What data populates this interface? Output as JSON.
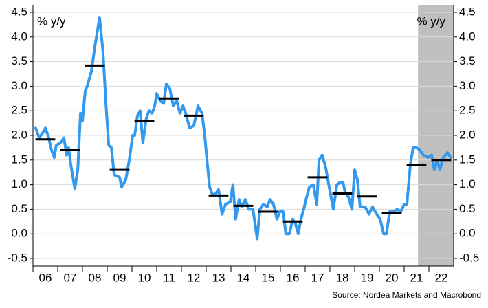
{
  "chart_data": {
    "type": "line",
    "y_label": "% y/y",
    "y2_label": "% y/y",
    "source": "Source: Nordea Markets and Macrobond",
    "xlim": [
      2006,
      2023
    ],
    "xticks": [
      {
        "value": 2006,
        "label": "06"
      },
      {
        "value": 2007,
        "label": "07"
      },
      {
        "value": 2008,
        "label": "08"
      },
      {
        "value": 2009,
        "label": "09"
      },
      {
        "value": 2010,
        "label": "10"
      },
      {
        "value": 2011,
        "label": "11"
      },
      {
        "value": 2012,
        "label": "12"
      },
      {
        "value": 2013,
        "label": "13"
      },
      {
        "value": 2014,
        "label": "14"
      },
      {
        "value": 2015,
        "label": "15"
      },
      {
        "value": 2016,
        "label": "16"
      },
      {
        "value": 2017,
        "label": "17"
      },
      {
        "value": 2018,
        "label": "18"
      },
      {
        "value": 2019,
        "label": "19"
      },
      {
        "value": 2020,
        "label": "20"
      },
      {
        "value": 2021,
        "label": "21"
      },
      {
        "value": 2022,
        "label": "22"
      }
    ],
    "ylim": [
      -0.5,
      4.5
    ],
    "yticks": [
      -0.5,
      {
        "value": 0,
        "label": "0.0"
      },
      0.5,
      {
        "value": 1,
        "label": "1.0"
      },
      1.5,
      {
        "value": 2,
        "label": "2.0"
      },
      2.5,
      {
        "value": 3,
        "label": "3.0"
      },
      3.5,
      {
        "value": 4,
        "label": "4.0"
      },
      4.5
    ],
    "y2lim": [
      -0.5,
      4.5
    ],
    "y2ticks": [
      -0.5,
      {
        "value": 0,
        "label": "0.0"
      },
      0.5,
      {
        "value": 1,
        "label": "1.0"
      },
      1.5,
      {
        "value": 2,
        "label": "2.0"
      },
      2.5,
      {
        "value": 3,
        "label": "3.0"
      },
      3.5,
      {
        "value": 4,
        "label": "4.0"
      },
      4.5
    ],
    "grid": true,
    "shaded_x": [
      2021.56,
      2023
    ],
    "shade_color": "#bfbfbf",
    "series": [
      {
        "color": "#3399ee",
        "x": [
          2006.11,
          2006.25,
          2006.39,
          2006.5,
          2006.61,
          2006.75,
          2006.86,
          2006.94,
          2007.11,
          2007.25,
          2007.36,
          2007.44,
          2007.53,
          2007.69,
          2007.81,
          2007.92,
          2008.0,
          2008.11,
          2008.19,
          2008.36,
          2008.5,
          2008.69,
          2008.83,
          2008.94,
          2009.06,
          2009.17,
          2009.28,
          2009.5,
          2009.58,
          2009.75,
          2009.89,
          2010.03,
          2010.11,
          2010.22,
          2010.33,
          2010.44,
          2010.58,
          2010.69,
          2010.81,
          2010.92,
          2011.0,
          2011.14,
          2011.28,
          2011.39,
          2011.53,
          2011.67,
          2011.81,
          2011.94,
          2012.06,
          2012.17,
          2012.33,
          2012.5,
          2012.67,
          2012.83,
          2012.94,
          2013.06,
          2013.14,
          2013.25,
          2013.36,
          2013.5,
          2013.64,
          2013.78,
          2013.97,
          2014.08,
          2014.19,
          2014.33,
          2014.44,
          2014.58,
          2014.72,
          2014.89,
          2015.06,
          2015.17,
          2015.31,
          2015.47,
          2015.58,
          2015.72,
          2015.86,
          2015.97,
          2016.11,
          2016.22,
          2016.36,
          2016.5,
          2016.61,
          2016.72,
          2016.83,
          2016.94,
          2017.06,
          2017.17,
          2017.33,
          2017.47,
          2017.56,
          2017.69,
          2017.83,
          2017.97,
          2018.14,
          2018.28,
          2018.42,
          2018.53,
          2018.61,
          2018.75,
          2018.89,
          2019.0,
          2019.11,
          2019.22,
          2019.42,
          2019.58,
          2019.72,
          2019.89,
          2020.03,
          2020.17,
          2020.28,
          2020.42,
          2020.58,
          2020.72,
          2020.86,
          2021.0,
          2021.11,
          2021.25,
          2021.36,
          2021.5,
          2021.64,
          2021.78,
          2021.97,
          2022.11,
          2022.22,
          2022.33,
          2022.44,
          2022.58,
          2022.75,
          2022.89
        ],
        "values": [
          2.15,
          1.95,
          2.05,
          2.15,
          2.0,
          1.7,
          1.55,
          1.8,
          1.85,
          1.95,
          1.6,
          1.75,
          1.4,
          0.92,
          1.3,
          2.45,
          2.3,
          2.9,
          3.0,
          3.3,
          3.8,
          4.4,
          3.7,
          2.7,
          1.8,
          1.75,
          1.2,
          1.15,
          0.95,
          1.1,
          1.5,
          2.0,
          2.0,
          2.4,
          2.5,
          1.85,
          2.35,
          2.5,
          2.45,
          2.6,
          2.85,
          2.7,
          2.65,
          3.05,
          2.95,
          2.6,
          2.7,
          2.45,
          2.6,
          2.45,
          2.15,
          2.2,
          2.6,
          2.45,
          2.0,
          1.35,
          0.95,
          0.8,
          0.8,
          0.9,
          0.4,
          0.6,
          0.65,
          1.0,
          0.3,
          0.7,
          0.55,
          0.7,
          0.5,
          0.5,
          -0.1,
          0.5,
          0.6,
          0.55,
          0.7,
          0.6,
          0.3,
          0.45,
          0.45,
          0.0,
          0.0,
          0.3,
          0.2,
          0.0,
          0.3,
          0.5,
          0.75,
          0.95,
          1.0,
          0.6,
          1.5,
          1.6,
          1.35,
          0.95,
          0.5,
          1.0,
          1.05,
          1.05,
          0.85,
          0.75,
          0.5,
          1.3,
          1.1,
          0.55,
          0.55,
          0.4,
          0.55,
          0.4,
          0.3,
          0.0,
          0.0,
          0.45,
          0.45,
          0.5,
          0.45,
          0.6,
          0.6,
          1.4,
          1.75,
          1.75,
          1.7,
          1.6,
          1.55,
          1.6,
          1.3,
          1.5,
          1.3,
          1.55,
          1.65,
          1.55
        ]
      }
    ],
    "annual_average": {
      "color": "#000000",
      "x": [
        2006,
        2007,
        2008,
        2009,
        2010,
        2011,
        2012,
        2013,
        2014,
        2015,
        2016,
        2017,
        2018,
        2019,
        2020,
        2021,
        2022
      ],
      "values": [
        1.92,
        1.7,
        3.42,
        1.3,
        2.3,
        2.75,
        2.4,
        0.78,
        0.57,
        0.45,
        0.25,
        1.15,
        0.82,
        0.76,
        0.42,
        1.4,
        1.5
      ]
    }
  }
}
